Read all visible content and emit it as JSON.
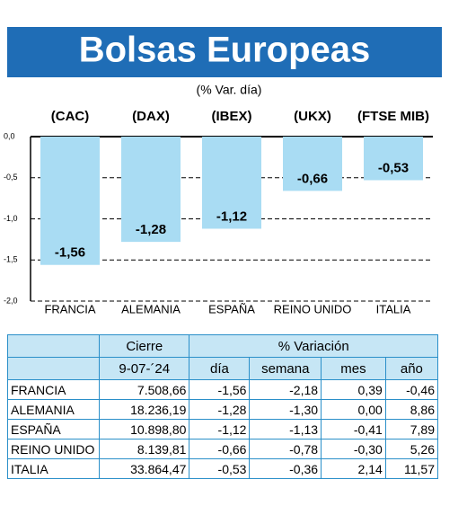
{
  "chart_data": {
    "type": "bar",
    "title": "Bolsas Europeas",
    "subtitle": "(% Var. día)",
    "index_labels": [
      "(CAC)",
      "(DAX)",
      "(IBEX)",
      "(UKX)",
      "(FTSE MIB)"
    ],
    "categories": [
      "FRANCIA",
      "ALEMANIA",
      "ESPAÑA",
      "REINO UNIDO",
      "ITALIA"
    ],
    "values": [
      -1.56,
      -1.28,
      -1.12,
      -0.66,
      -0.53
    ],
    "value_labels": [
      "-1,56",
      "-1,28",
      "-1,12",
      "-0,66",
      "-0,53"
    ],
    "color": "#a9dcf3",
    "ylim": [
      -2.0,
      0.0
    ],
    "yticks": [
      {
        "value": 0.0,
        "label": "0,0"
      },
      {
        "value": -0.5,
        "label": "-0,5"
      },
      {
        "value": -1.0,
        "label": "-1,0"
      },
      {
        "value": -1.5,
        "label": "-1,5"
      },
      {
        "value": -2.0,
        "label": "-2,0"
      }
    ],
    "grid": true
  },
  "table": {
    "header": [
      [
        "Cierre",
        "% Variación"
      ],
      [
        "9-07-´24",
        "día",
        "semana",
        "mes",
        "año"
      ]
    ],
    "rows": [
      [
        "FRANCIA",
        "7.508,66",
        "-1,56",
        "-2,18",
        "0,39",
        "-0,46"
      ],
      [
        "ALEMANIA",
        "18.236,19",
        "-1,28",
        "-1,30",
        "0,00",
        "8,86"
      ],
      [
        "ESPAÑA",
        "10.898,80",
        "-1,12",
        "-1,13",
        "-0,41",
        "7,89"
      ],
      [
        "REINO UNIDO",
        "8.139,81",
        "-0,66",
        "-0,78",
        "-0,30",
        "5,26"
      ],
      [
        "ITALIA",
        "33.864,47",
        "-0,53",
        "-0,36",
        "2,14",
        "11,57"
      ]
    ]
  }
}
